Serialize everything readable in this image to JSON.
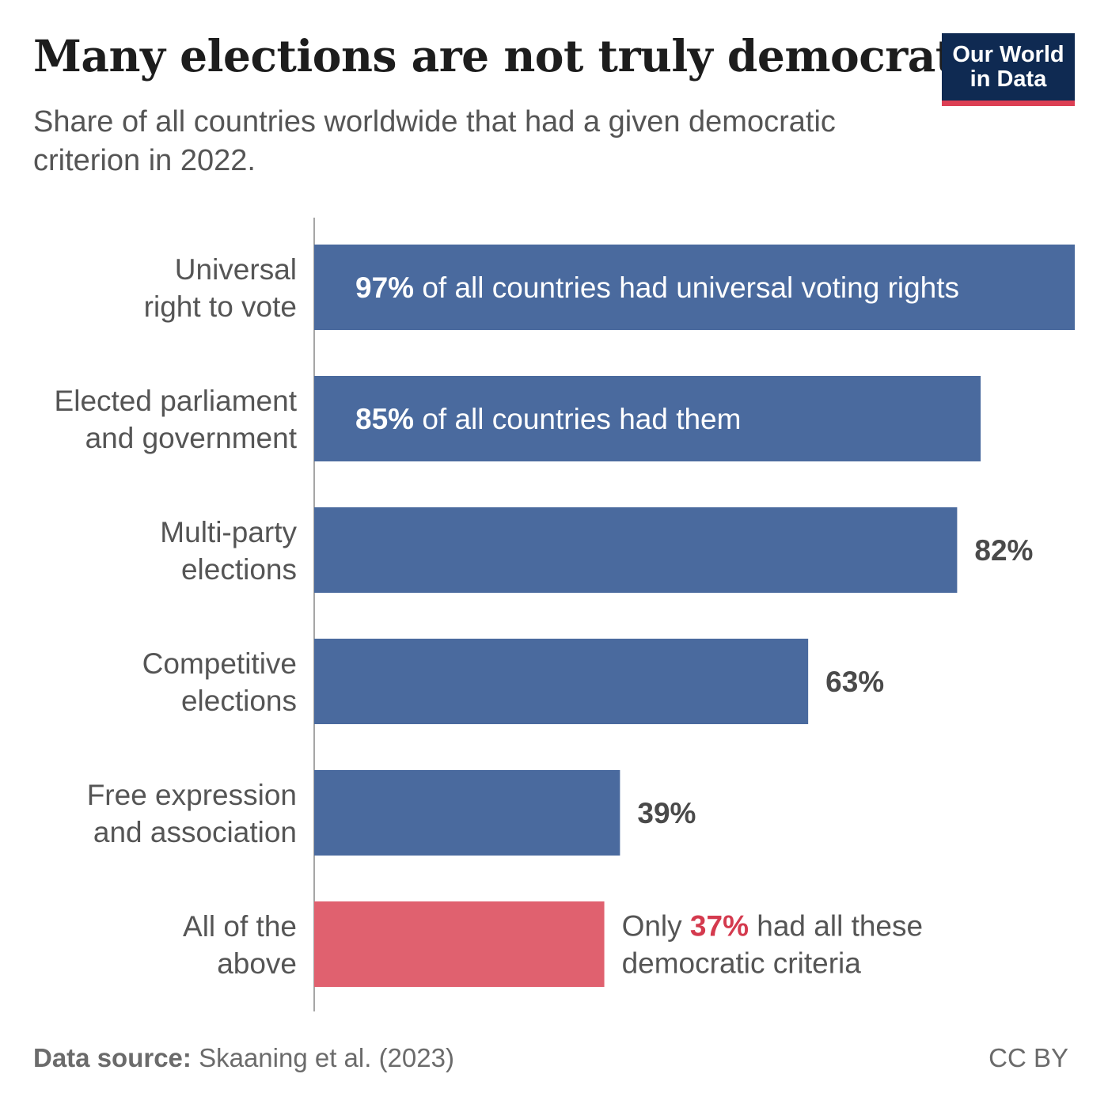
{
  "header": {
    "title": "Many elections are not truly democratic",
    "subtitle": "Share of all countries worldwide that had a given democratic criterion in 2022."
  },
  "logo": {
    "line1": "Our World",
    "line2": "in Data"
  },
  "footer": {
    "source_label": "Data source:",
    "source_text": "Skaaning et al. (2023)",
    "license": "CC BY"
  },
  "colors": {
    "bar": "#4a6a9e",
    "highlight": "#e0616f",
    "highlight_text": "#d43a4e",
    "label_text": "#555555",
    "value_text": "#4a4a4a",
    "axis": "#888888"
  },
  "chart_data": {
    "type": "bar",
    "orientation": "horizontal",
    "title": "Many elections are not truly democratic",
    "subtitle": "Share of all countries worldwide that had a given democratic criterion in 2022.",
    "xlabel": "",
    "ylabel": "",
    "xlim": [
      0,
      97
    ],
    "unit": "%",
    "grid": false,
    "categories": [
      "Universal right to vote",
      "Elected parliament and government",
      "Multi-party elections",
      "Competitive elections",
      "Free expression and association",
      "All of the above"
    ],
    "category_lines": [
      [
        "Universal",
        "right to vote"
      ],
      [
        "Elected parliament",
        "and government"
      ],
      [
        "Multi-party",
        "elections"
      ],
      [
        "Competitive",
        "elections"
      ],
      [
        "Free expression",
        "and association"
      ],
      [
        "All of the",
        "above"
      ]
    ],
    "values": [
      97,
      85,
      82,
      63,
      39,
      37
    ],
    "highlight_index": 5,
    "annotations": [
      {
        "index": 0,
        "placement": "inside",
        "lines": [
          [
            {
              "text": "97%",
              "bold": true
            },
            {
              "text": " of all countries had universal voting rights"
            }
          ]
        ]
      },
      {
        "index": 1,
        "placement": "inside",
        "lines": [
          [
            {
              "text": "85%",
              "bold": true
            },
            {
              "text": " of all countries had them"
            }
          ]
        ]
      },
      {
        "index": 2,
        "placement": "outside",
        "lines": [
          [
            {
              "text": "82%",
              "bold": true
            }
          ]
        ]
      },
      {
        "index": 3,
        "placement": "outside",
        "lines": [
          [
            {
              "text": "63%",
              "bold": true
            }
          ]
        ]
      },
      {
        "index": 4,
        "placement": "outside",
        "lines": [
          [
            {
              "text": "39%",
              "bold": true
            }
          ]
        ]
      },
      {
        "index": 5,
        "placement": "outside",
        "lines": [
          [
            {
              "text": "Only "
            },
            {
              "text": "37%",
              "bold": true,
              "highlight": true
            },
            {
              "text": " had all these"
            }
          ],
          [
            {
              "text": "democratic criteria"
            }
          ]
        ]
      }
    ]
  }
}
